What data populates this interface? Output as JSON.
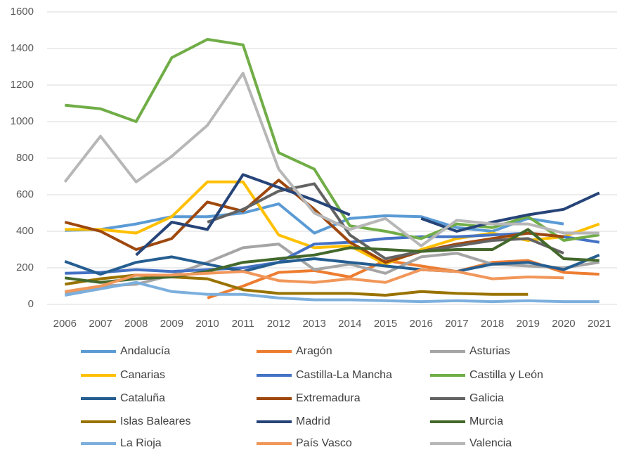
{
  "chart_data": {
    "type": "line",
    "x": [
      "2006",
      "2007",
      "2008",
      "2009",
      "2010",
      "2011",
      "2012",
      "2013",
      "2014",
      "2015",
      "2016",
      "2017",
      "2018",
      "2019",
      "2020",
      "2021"
    ],
    "ylim": [
      0,
      1600
    ],
    "yticks": [
      0,
      200,
      400,
      600,
      800,
      1000,
      1200,
      1400,
      1600
    ],
    "grid": true,
    "legend": "bottom",
    "series": [
      {
        "name": "Andalucía",
        "color": "#5B9BD5",
        "values": [
          405,
          410,
          440,
          480,
          480,
          500,
          550,
          390,
          470,
          485,
          480,
          420,
          400,
          470,
          440,
          null
        ]
      },
      {
        "name": "Aragón",
        "color": "#ED7D31",
        "values": [
          null,
          null,
          null,
          null,
          35,
          100,
          175,
          185,
          150,
          240,
          210,
          180,
          230,
          240,
          175,
          165
        ]
      },
      {
        "name": "Asturias",
        "color": "#A5A5A5",
        "values": [
          60,
          100,
          110,
          160,
          230,
          310,
          330,
          190,
          220,
          170,
          260,
          280,
          220,
          210,
          200,
          230
        ]
      },
      {
        "name": "Canarias",
        "color": "#FFC000",
        "values": [
          410,
          410,
          390,
          480,
          670,
          670,
          380,
          310,
          320,
          220,
          300,
          360,
          390,
          350,
          370,
          440
        ]
      },
      {
        "name": "Castilla-La Mancha",
        "color": "#4472C4",
        "values": [
          170,
          175,
          190,
          180,
          190,
          200,
          230,
          330,
          340,
          360,
          370,
          370,
          380,
          390,
          370,
          340
        ]
      },
      {
        "name": "Castilla y León",
        "color": "#70AD47",
        "values": [
          1090,
          1070,
          1000,
          1350,
          1450,
          1420,
          830,
          740,
          430,
          400,
          360,
          440,
          420,
          480,
          350,
          380
        ]
      },
      {
        "name": "Cataluña",
        "color": "#255E91",
        "values": [
          235,
          165,
          230,
          260,
          220,
          180,
          230,
          250,
          230,
          210,
          190,
          180,
          220,
          230,
          190,
          270
        ]
      },
      {
        "name": "Extremadura",
        "color": "#9E480E",
        "values": [
          450,
          400,
          300,
          360,
          560,
          510,
          680,
          520,
          340,
          230,
          290,
          330,
          360,
          390,
          370,
          null
        ]
      },
      {
        "name": "Galicia",
        "color": "#636363",
        "values": [
          null,
          null,
          null,
          null,
          450,
          520,
          620,
          660,
          380,
          250,
          290,
          320,
          350,
          360,
          280,
          null
        ]
      },
      {
        "name": "Islas Baleares",
        "color": "#997300",
        "values": [
          110,
          140,
          160,
          150,
          140,
          80,
          60,
          60,
          60,
          50,
          70,
          60,
          55,
          55,
          null,
          null
        ]
      },
      {
        "name": "Madrid",
        "color": "#264478",
        "values": [
          null,
          null,
          270,
          450,
          410,
          710,
          640,
          570,
          490,
          null,
          470,
          400,
          450,
          490,
          520,
          610
        ]
      },
      {
        "name": "Murcia",
        "color": "#43682B",
        "values": [
          145,
          120,
          140,
          150,
          180,
          230,
          250,
          270,
          310,
          300,
          290,
          300,
          300,
          410,
          250,
          240
        ]
      },
      {
        "name": "La Rioja",
        "color": "#7CAFDD",
        "values": [
          50,
          85,
          120,
          70,
          55,
          55,
          35,
          25,
          25,
          20,
          15,
          20,
          15,
          20,
          15,
          15
        ]
      },
      {
        "name": "País Vasco",
        "color": "#F1975A",
        "values": [
          70,
          100,
          160,
          160,
          170,
          180,
          130,
          120,
          140,
          120,
          190,
          180,
          140,
          150,
          145,
          null
        ]
      },
      {
        "name": "Valencia",
        "color": "#B7B7B7",
        "values": [
          670,
          920,
          670,
          810,
          980,
          1265,
          740,
          500,
          410,
          470,
          320,
          460,
          440,
          440,
          390,
          390
        ]
      }
    ]
  }
}
